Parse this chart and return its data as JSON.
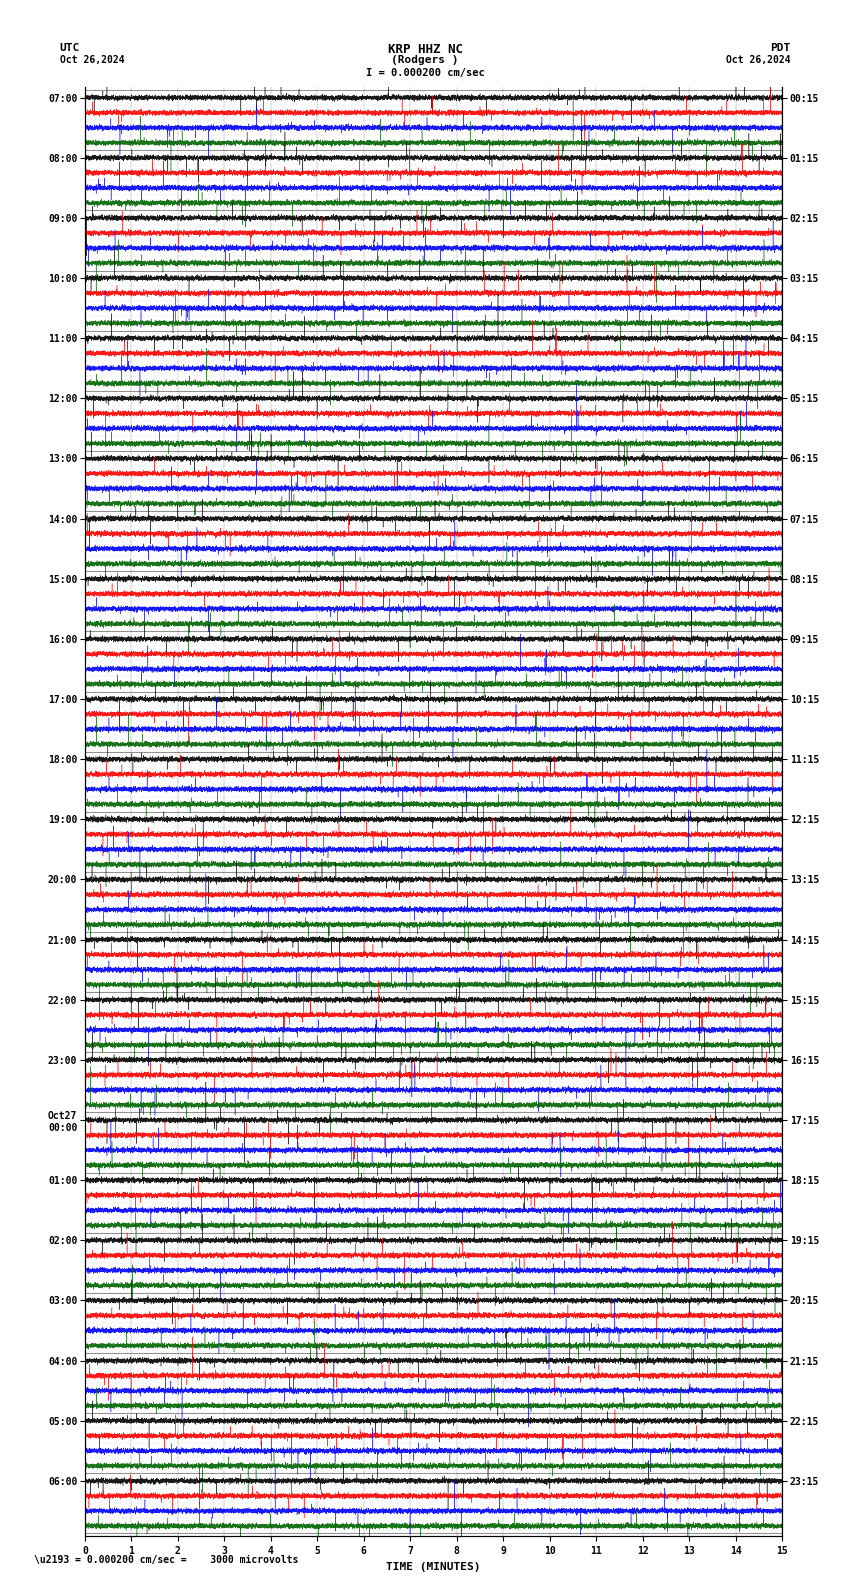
{
  "title_line1": "KRP HHZ NC",
  "title_line2": "(Rodgers )",
  "scale_label": "I = 0.000200 cm/sec",
  "bottom_label": "\\u2193 = 0.000200 cm/sec =    3000 microvolts",
  "left_header": "UTC",
  "left_date": "Oct 26,2024",
  "right_header": "PDT",
  "right_date": "Oct 26,2024",
  "xlabel": "TIME (MINUTES)",
  "xlim": [
    0,
    15
  ],
  "background_color": "#ffffff",
  "trace_colors": [
    "#000000",
    "#ff0000",
    "#0000ff",
    "#006400"
  ],
  "num_minutes": 15,
  "sample_rate": 100,
  "amplitude": 0.4,
  "noise_scale": 1.0,
  "left_times": [
    "07:00",
    "",
    "",
    "",
    "08:00",
    "",
    "",
    "",
    "09:00",
    "",
    "",
    "",
    "10:00",
    "",
    "",
    "",
    "11:00",
    "",
    "",
    "",
    "12:00",
    "",
    "",
    "",
    "13:00",
    "",
    "",
    "",
    "14:00",
    "",
    "",
    "",
    "15:00",
    "",
    "",
    "",
    "16:00",
    "",
    "",
    "",
    "17:00",
    "",
    "",
    "",
    "18:00",
    "",
    "",
    "",
    "19:00",
    "",
    "",
    "",
    "20:00",
    "",
    "",
    "",
    "21:00",
    "",
    "",
    "",
    "22:00",
    "",
    "",
    "",
    "23:00",
    "",
    "",
    "",
    "Oct27\n00:00",
    "",
    "",
    "",
    "01:00",
    "",
    "",
    "",
    "02:00",
    "",
    "",
    "",
    "03:00",
    "",
    "",
    "",
    "04:00",
    "",
    "",
    "",
    "05:00",
    "",
    "",
    "",
    "06:00",
    "",
    "",
    ""
  ],
  "right_times": [
    "00:15",
    "",
    "",
    "",
    "01:15",
    "",
    "",
    "",
    "02:15",
    "",
    "",
    "",
    "03:15",
    "",
    "",
    "",
    "04:15",
    "",
    "",
    "",
    "05:15",
    "",
    "",
    "",
    "06:15",
    "",
    "",
    "",
    "07:15",
    "",
    "",
    "",
    "08:15",
    "",
    "",
    "",
    "09:15",
    "",
    "",
    "",
    "10:15",
    "",
    "",
    "",
    "11:15",
    "",
    "",
    "",
    "12:15",
    "",
    "",
    "",
    "13:15",
    "",
    "",
    "",
    "14:15",
    "",
    "",
    "",
    "15:15",
    "",
    "",
    "",
    "16:15",
    "",
    "",
    "",
    "17:15",
    "",
    "",
    "",
    "18:15",
    "",
    "",
    "",
    "19:15",
    "",
    "",
    "",
    "20:15",
    "",
    "",
    "",
    "21:15",
    "",
    "",
    "",
    "22:15",
    "",
    "",
    "",
    "23:15",
    "",
    "",
    ""
  ],
  "num_rows": 96,
  "xticks": [
    0,
    1,
    2,
    3,
    4,
    5,
    6,
    7,
    8,
    9,
    10,
    11,
    12,
    13,
    14,
    15
  ],
  "seed": 42
}
